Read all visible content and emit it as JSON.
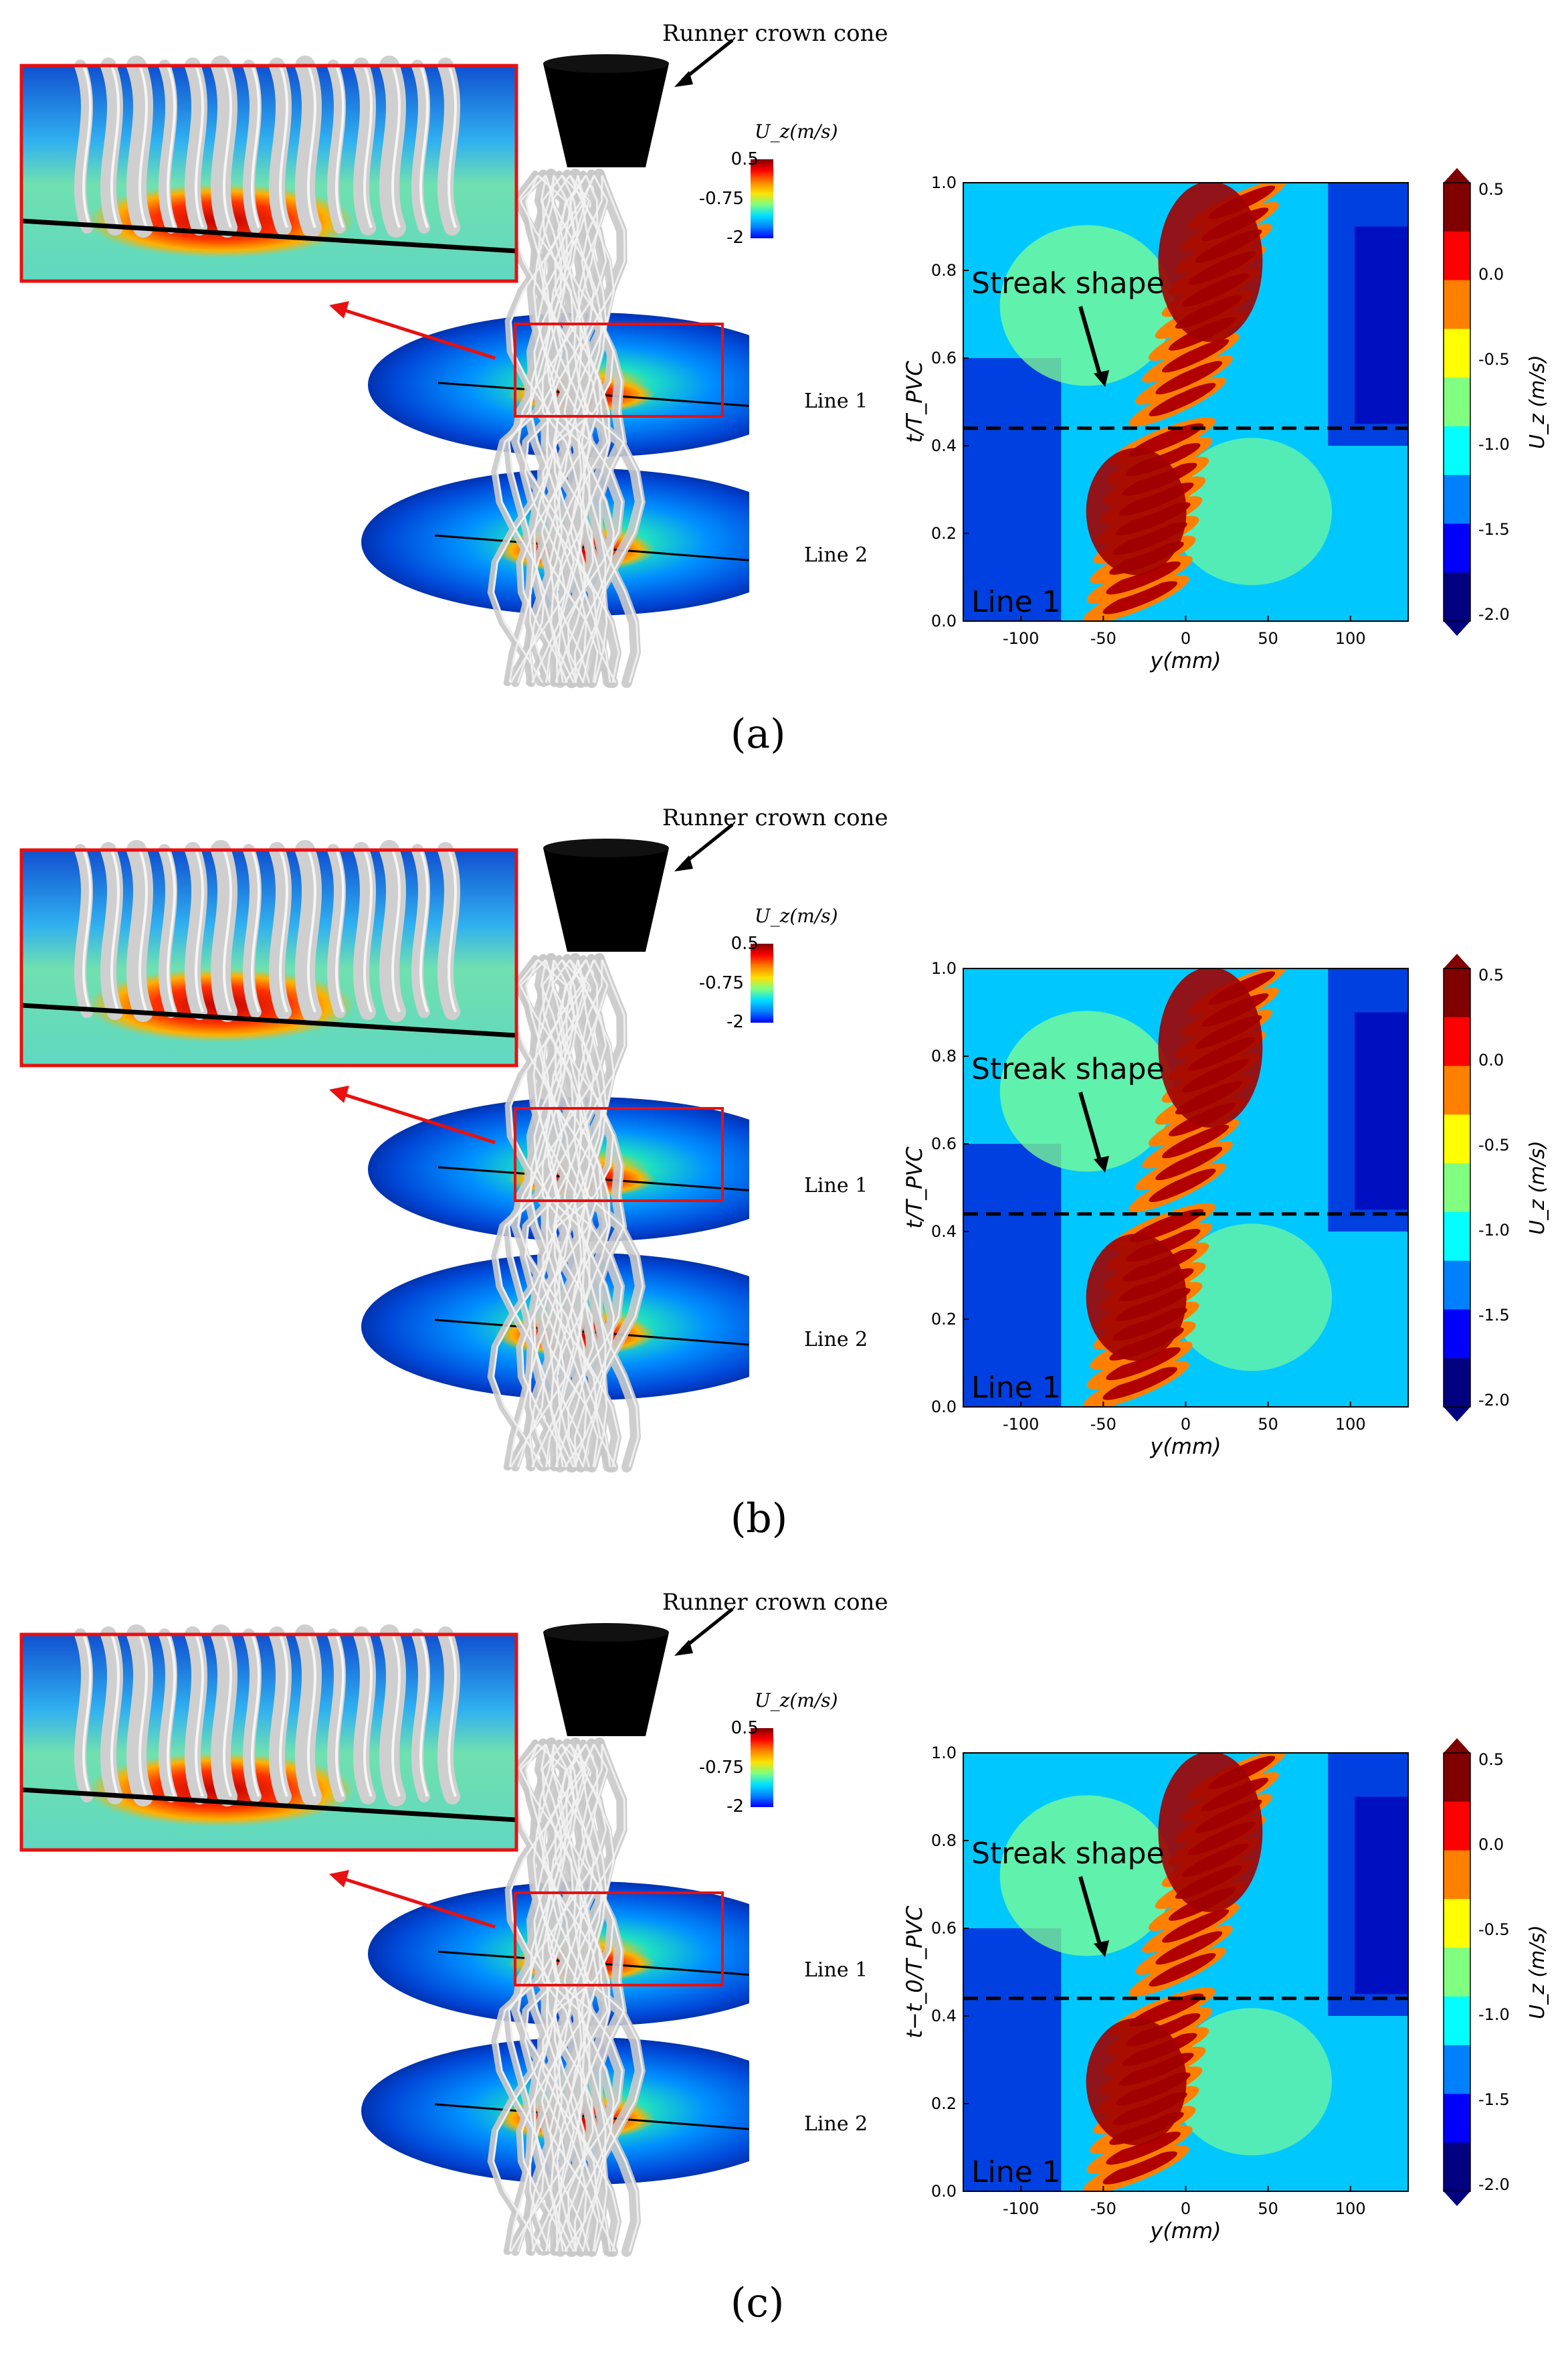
{
  "panels": [
    {
      "label": "(a)",
      "cone_label": "Runner crown cone",
      "line1_label": "Line 1",
      "line2_label": "Line 2",
      "small_colorbar": {
        "title": "U_z(m/s)",
        "ticks": [
          "0.5",
          "-0.75",
          "-2"
        ]
      },
      "chart": {
        "streak_label": "Streak shape",
        "line_label": "Line 1",
        "ylabel": "t/T_PVC",
        "xlabel": "y(mm)",
        "xticks": [
          "-100",
          "-50",
          "0",
          "50",
          "100"
        ],
        "yticks": [
          "0.0",
          "0.2",
          "0.4",
          "0.6",
          "0.8",
          "1.0"
        ],
        "cbar_label": "U_z (m/s)",
        "cbar_ticks": [
          "0.5",
          "0.0",
          "-0.5",
          "-1.0",
          "-1.5",
          "-2.0"
        ]
      }
    },
    {
      "label": "(b)",
      "cone_label": "Runner crown cone",
      "line1_label": "Line 1",
      "line2_label": "Line 2",
      "small_colorbar": {
        "title": "U_z(m/s)",
        "ticks": [
          "0.5",
          "-0.75",
          "-2"
        ]
      },
      "chart": {
        "streak_label": "Streak shape",
        "line_label": "Line 1",
        "ylabel": "t/T_PVC",
        "xlabel": "y(mm)",
        "xticks": [
          "-100",
          "-50",
          "0",
          "50",
          "100"
        ],
        "yticks": [
          "0.0",
          "0.2",
          "0.4",
          "0.6",
          "0.8",
          "1.0"
        ],
        "cbar_label": "U_z (m/s)",
        "cbar_ticks": [
          "0.5",
          "0.0",
          "-0.5",
          "-1.0",
          "-1.5",
          "-2.0"
        ]
      }
    },
    {
      "label": "(c)",
      "cone_label": "Runner crown cone",
      "line1_label": "Line 1",
      "line2_label": "Line 2",
      "small_colorbar": {
        "title": "U_z(m/s)",
        "ticks": [
          "0.5",
          "-0.75",
          "-2"
        ]
      },
      "chart": {
        "streak_label": "Streak shape",
        "line_label": "Line 1",
        "ylabel": "t−t_0/T_PVC",
        "xlabel": "y(mm)",
        "xticks": [
          "-100",
          "-50",
          "0",
          "50",
          "100"
        ],
        "yticks": [
          "0.0",
          "0.2",
          "0.4",
          "0.6",
          "0.8",
          "1.0"
        ],
        "cbar_label": "U_z (m/s)",
        "cbar_ticks": [
          "0.5",
          "0.0",
          "-0.5",
          "-1.0",
          "-1.5",
          "-2.0"
        ]
      }
    }
  ],
  "chart_data": [
    {
      "type": "heatmap",
      "xlabel": "y(mm)",
      "ylabel": "t/T_PVC",
      "xlim": [
        -135,
        135
      ],
      "ylim": [
        0,
        1
      ],
      "zlim": [
        -2.0,
        0.5
      ],
      "colorbar_label": "U_z (m/s)",
      "dashed_line_t": 0.44,
      "colormap": [
        "#00007f",
        "#0000ff",
        "#0080ff",
        "#00e0ff",
        "#7fff7f",
        "#ffe000",
        "#ff8000",
        "#ff0000",
        "#7f0000"
      ]
    },
    {
      "type": "heatmap",
      "xlabel": "y(mm)",
      "ylabel": "t/T_PVC",
      "xlim": [
        -135,
        135
      ],
      "ylim": [
        0,
        1
      ],
      "zlim": [
        -2.0,
        0.5
      ],
      "colorbar_label": "U_z (m/s)",
      "dashed_line_t": 0.44,
      "colormap": [
        "#00007f",
        "#0000ff",
        "#0080ff",
        "#00e0ff",
        "#7fff7f",
        "#ffe000",
        "#ff8000",
        "#ff0000",
        "#7f0000"
      ]
    },
    {
      "type": "heatmap",
      "xlabel": "y(mm)",
      "ylabel": "t−t_0/T_PVC",
      "xlim": [
        -135,
        135
      ],
      "ylim": [
        0,
        1
      ],
      "zlim": [
        -2.0,
        0.5
      ],
      "colorbar_label": "U_z (m/s)",
      "dashed_line_t": 0.44,
      "colormap": [
        "#00007f",
        "#0000ff",
        "#0080ff",
        "#00e0ff",
        "#7fff7f",
        "#ffe000",
        "#ff8000",
        "#ff0000",
        "#7f0000"
      ]
    }
  ]
}
